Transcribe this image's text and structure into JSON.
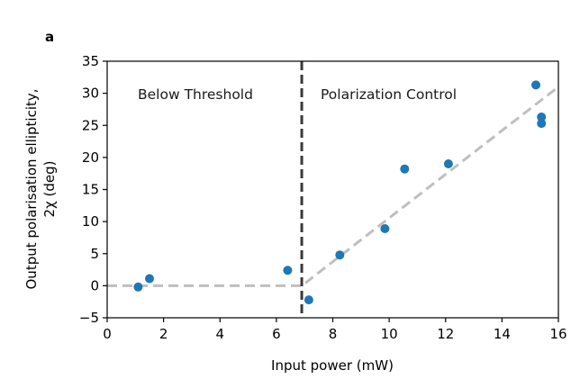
{
  "chart_data": {
    "type": "scatter",
    "panel_label": "a",
    "xlabel": "Input power (mW)",
    "ylabel_line1": "Output polarisation ellipticity,",
    "ylabel_line2": "2χ (deg)",
    "xlim": [
      0,
      16
    ],
    "ylim": [
      -5,
      35
    ],
    "xticks": [
      0,
      2,
      4,
      6,
      8,
      10,
      12,
      14,
      16
    ],
    "yticks": [
      -5,
      0,
      5,
      10,
      15,
      20,
      25,
      30,
      35
    ],
    "xtick_labels": [
      "0",
      "2",
      "4",
      "6",
      "8",
      "10",
      "12",
      "14",
      "16"
    ],
    "ytick_labels": [
      "−5",
      "0",
      "5",
      "10",
      "15",
      "20",
      "25",
      "30",
      "35"
    ],
    "grid": false,
    "region_labels": {
      "below": "Below Threshold",
      "above": "Polarization Control"
    },
    "threshold_x": 6.9,
    "points": [
      {
        "x": 1.1,
        "y": -0.2
      },
      {
        "x": 1.5,
        "y": 1.1
      },
      {
        "x": 6.4,
        "y": 2.4
      },
      {
        "x": 7.15,
        "y": -2.2
      },
      {
        "x": 8.25,
        "y": 4.8
      },
      {
        "x": 9.85,
        "y": 8.9
      },
      {
        "x": 10.55,
        "y": 18.2
      },
      {
        "x": 12.1,
        "y": 19.0
      },
      {
        "x": 15.2,
        "y": 31.3
      },
      {
        "x": 15.4,
        "y": 26.3
      },
      {
        "x": 15.4,
        "y": 25.3
      }
    ],
    "fit_line": [
      [
        0,
        0
      ],
      [
        6.9,
        0
      ],
      [
        16,
        31.0
      ]
    ],
    "colors": {
      "points": "#1f77b4",
      "fit": "#bfbfbf",
      "threshold": "#3a3a3a"
    }
  }
}
